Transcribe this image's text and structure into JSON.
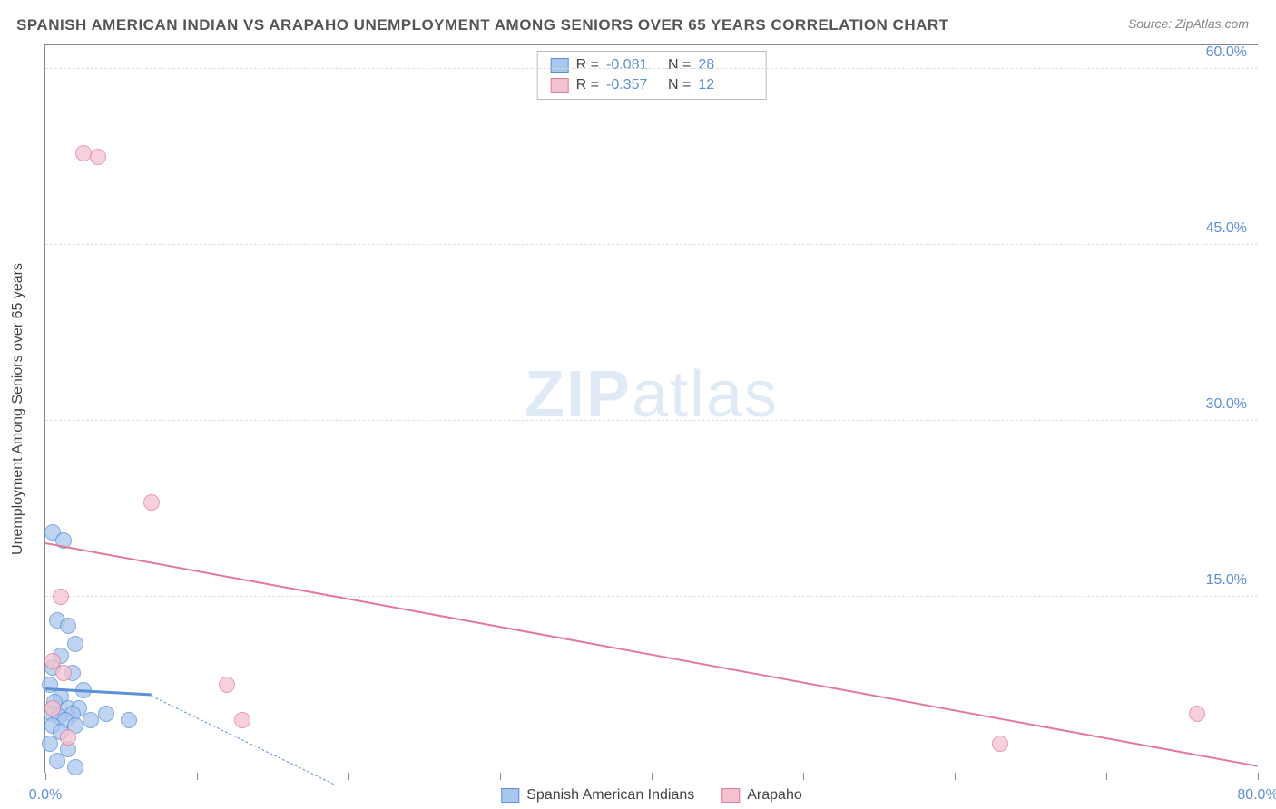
{
  "header": {
    "title": "SPANISH AMERICAN INDIAN VS ARAPAHO UNEMPLOYMENT AMONG SENIORS OVER 65 YEARS CORRELATION CHART",
    "source": "Source: ZipAtlas.com"
  },
  "chart": {
    "type": "scatter",
    "ylabel": "Unemployment Among Seniors over 65 years",
    "xlim": [
      0,
      80
    ],
    "ylim": [
      0,
      62
    ],
    "yticks": [
      {
        "v": 15.0,
        "label": "15.0%"
      },
      {
        "v": 30.0,
        "label": "30.0%"
      },
      {
        "v": 45.0,
        "label": "45.0%"
      },
      {
        "v": 60.0,
        "label": "60.0%"
      }
    ],
    "xticks": [
      {
        "v": 0,
        "label": "0.0%"
      },
      {
        "v": 10,
        "label": ""
      },
      {
        "v": 20,
        "label": ""
      },
      {
        "v": 30,
        "label": ""
      },
      {
        "v": 40,
        "label": ""
      },
      {
        "v": 50,
        "label": ""
      },
      {
        "v": 60,
        "label": ""
      },
      {
        "v": 70,
        "label": ""
      },
      {
        "v": 80,
        "label": "80.0%"
      }
    ],
    "background_color": "#ffffff",
    "grid_color": "#dddddd",
    "axis_color": "#888888",
    "label_color": "#5b8fd6",
    "watermark_text_bold": "ZIP",
    "watermark_text_light": "atlas",
    "series": [
      {
        "name": "Spanish American Indians",
        "color_fill": "#a9c6ec",
        "color_stroke": "#5b8fd6",
        "R": "-0.081",
        "N": "28",
        "trend": {
          "x1": 0,
          "y1": 7.0,
          "x2": 7,
          "y2": 6.5,
          "dashed": false,
          "width": 3
        },
        "trend_ext": {
          "x1": 7,
          "y1": 6.5,
          "x2": 19,
          "y2": -1,
          "dashed": true,
          "width": 1
        },
        "points": [
          {
            "x": 0.5,
            "y": 20.5
          },
          {
            "x": 1.2,
            "y": 19.8
          },
          {
            "x": 0.8,
            "y": 13.0
          },
          {
            "x": 1.5,
            "y": 12.5
          },
          {
            "x": 2.0,
            "y": 11.0
          },
          {
            "x": 1.0,
            "y": 10.0
          },
          {
            "x": 0.5,
            "y": 9.0
          },
          {
            "x": 1.8,
            "y": 8.5
          },
          {
            "x": 0.3,
            "y": 7.5
          },
          {
            "x": 2.5,
            "y": 7.0
          },
          {
            "x": 1.0,
            "y": 6.5
          },
          {
            "x": 0.6,
            "y": 6.0
          },
          {
            "x": 1.5,
            "y": 5.5
          },
          {
            "x": 2.2,
            "y": 5.5
          },
          {
            "x": 0.4,
            "y": 5.0
          },
          {
            "x": 1.8,
            "y": 5.0
          },
          {
            "x": 0.9,
            "y": 4.8
          },
          {
            "x": 1.3,
            "y": 4.5
          },
          {
            "x": 3.0,
            "y": 4.5
          },
          {
            "x": 0.5,
            "y": 4.0
          },
          {
            "x": 2.0,
            "y": 4.0
          },
          {
            "x": 1.0,
            "y": 3.5
          },
          {
            "x": 4.0,
            "y": 5.0
          },
          {
            "x": 5.5,
            "y": 4.5
          },
          {
            "x": 0.3,
            "y": 2.5
          },
          {
            "x": 1.5,
            "y": 2.0
          },
          {
            "x": 0.8,
            "y": 1.0
          },
          {
            "x": 2.0,
            "y": 0.5
          }
        ]
      },
      {
        "name": "Arapaho",
        "color_fill": "#f4c2cf",
        "color_stroke": "#e37a99",
        "R": "-0.357",
        "N": "12",
        "trend": {
          "x1": 0,
          "y1": 19.5,
          "x2": 80,
          "y2": 0.5,
          "dashed": false,
          "width": 2
        },
        "points": [
          {
            "x": 2.5,
            "y": 52.8
          },
          {
            "x": 3.5,
            "y": 52.5
          },
          {
            "x": 7.0,
            "y": 23.0
          },
          {
            "x": 1.0,
            "y": 15.0
          },
          {
            "x": 0.5,
            "y": 9.5
          },
          {
            "x": 1.2,
            "y": 8.5
          },
          {
            "x": 12.0,
            "y": 7.5
          },
          {
            "x": 0.5,
            "y": 5.5
          },
          {
            "x": 13.0,
            "y": 4.5
          },
          {
            "x": 63.0,
            "y": 2.5
          },
          {
            "x": 76.0,
            "y": 5.0
          },
          {
            "x": 1.5,
            "y": 3.0
          }
        ]
      }
    ],
    "bottom_legend": [
      {
        "label": "Spanish American Indians",
        "fill": "#a9c6ec",
        "stroke": "#5b8fd6"
      },
      {
        "label": "Arapaho",
        "fill": "#f4c2cf",
        "stroke": "#e37a99"
      }
    ]
  }
}
